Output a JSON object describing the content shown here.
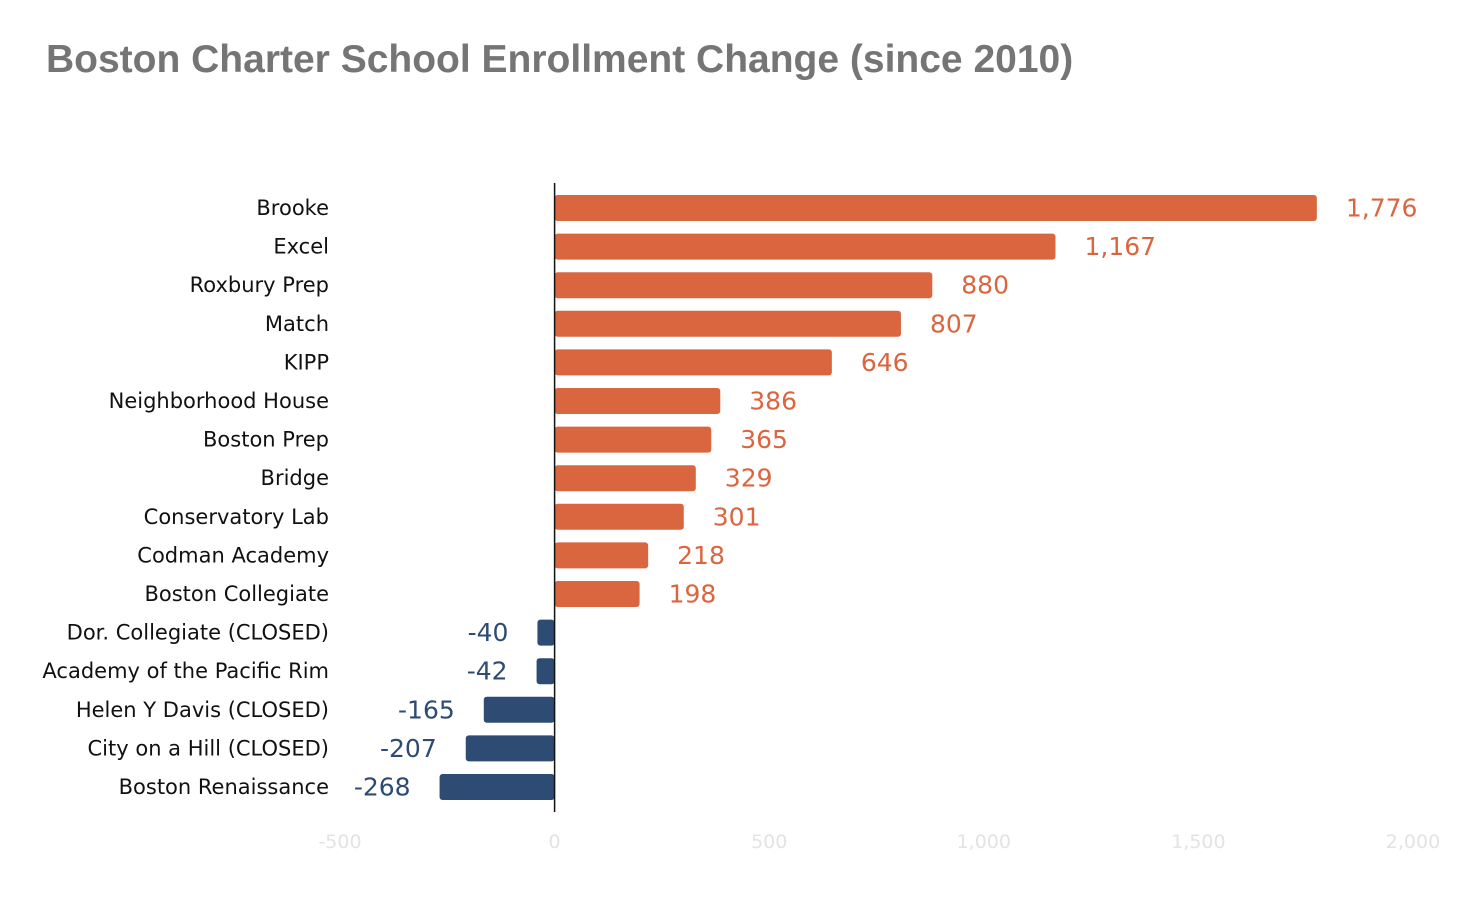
{
  "chart_data": {
    "type": "bar",
    "orientation": "horizontal",
    "title": "Boston Charter School Enrollment Change (since 2010)",
    "xlabel": "",
    "ylabel": "",
    "xlim": [
      -500,
      2000
    ],
    "xticks": [
      -500,
      0,
      500,
      1000,
      1500,
      2000
    ],
    "xtick_labels": [
      "-500",
      "0",
      "500",
      "1,000",
      "1,500",
      "2,000"
    ],
    "categories": [
      "Brooke",
      "Excel",
      "Roxbury Prep",
      "Match",
      "KIPP",
      "Neighborhood House",
      "Boston Prep",
      "Bridge",
      "Conservatory Lab",
      "Codman Academy",
      "Boston Collegiate",
      "Dor. Collegiate (CLOSED)",
      "Academy of the Pacific Rim",
      "Helen Y Davis (CLOSED)",
      "City on a Hill (CLOSED)",
      "Boston Renaissance"
    ],
    "values": [
      1776,
      1167,
      880,
      807,
      646,
      386,
      365,
      329,
      301,
      218,
      198,
      -40,
      -42,
      -165,
      -207,
      -268
    ],
    "value_labels": [
      "1,776",
      "1,167",
      "880",
      "807",
      "646",
      "386",
      "365",
      "329",
      "301",
      "218",
      "198",
      "-40",
      "-42",
      "-165",
      "-207",
      "-268"
    ],
    "colors": {
      "positive": "#da6640",
      "negative": "#2d4b73",
      "axis": "#111111",
      "tick": "#e3e3e3"
    },
    "grid": false,
    "legend": "none"
  }
}
